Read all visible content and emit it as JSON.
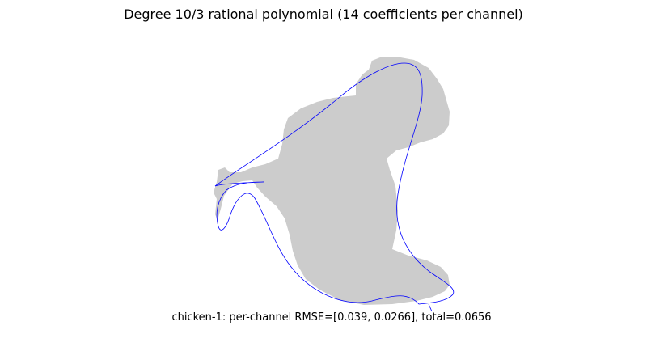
{
  "figure": {
    "title": "Degree 10/3 rational polynomial (14 coefficients per channel)",
    "caption": "chicken-1: per-channel RMSE=[0.039, 0.0266], total=0.0656"
  },
  "colors": {
    "silhouette": "#cccccc",
    "fitted_curve": "#0000ff",
    "background": "#ffffff"
  }
}
